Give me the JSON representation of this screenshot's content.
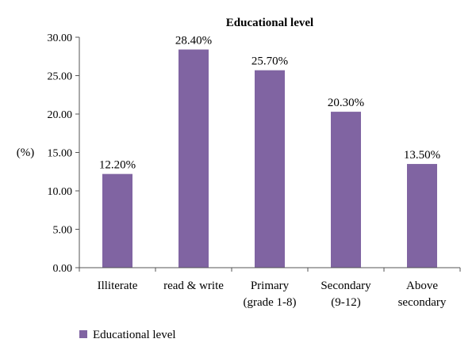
{
  "chart_data": {
    "type": "bar",
    "title": "Educational level",
    "ylabel": "(%)",
    "xlabel": "",
    "categories": [
      "Illiterate",
      "read & write",
      "Primary\n(grade 1-8)",
      "Secondary\n(9-12)",
      "Above\nsecondary"
    ],
    "series": [
      {
        "name": "Educational level",
        "values": [
          12.2,
          28.4,
          25.7,
          20.3,
          13.5
        ],
        "labels": [
          "12.20%",
          "28.40%",
          "25.70%",
          "20.30%",
          "13.50%"
        ]
      }
    ],
    "ylim": [
      0,
      30
    ],
    "yticks": [
      "0.00",
      "5.00",
      "10.00",
      "15.00",
      "20.00",
      "25.00",
      "30.00"
    ],
    "grid": false,
    "legend_position": "bottom-left",
    "bar_color": "#8064a2"
  }
}
